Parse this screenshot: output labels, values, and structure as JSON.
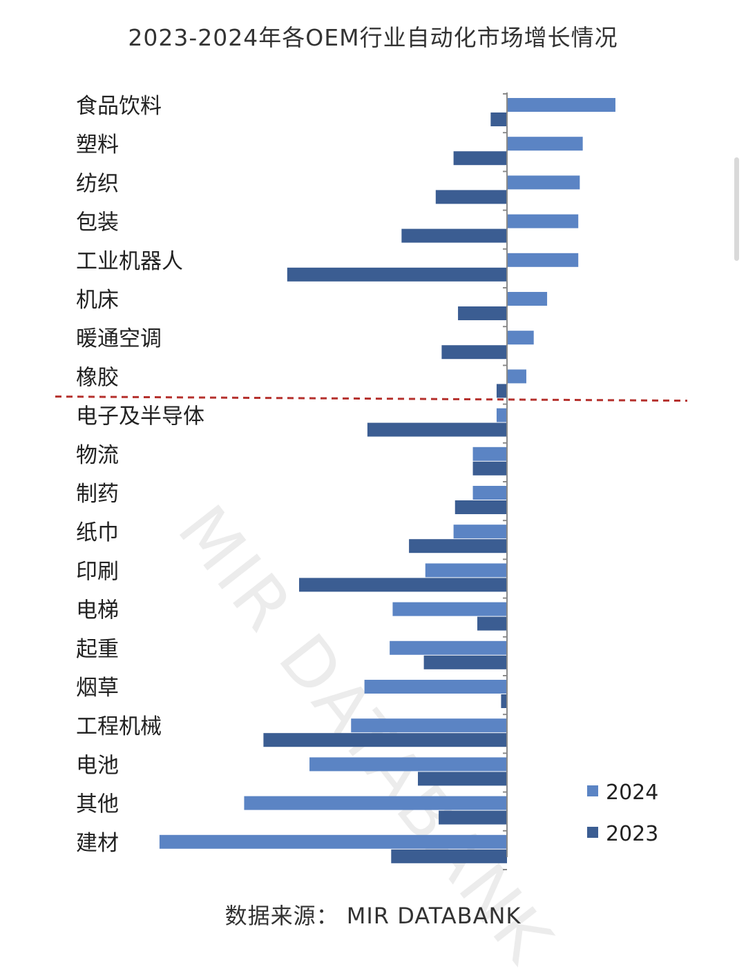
{
  "title": "2023-2024年各OEM行业自动化市场增长情况",
  "source": "数据来源： MIR DATABANK",
  "watermark": "MIR DATABANK",
  "chart_data": {
    "type": "bar",
    "orientation": "horizontal",
    "title": "2023-2024年各OEM行业自动化市场增长情况",
    "categories": [
      "食品饮料",
      "塑料",
      "纺织",
      "包装",
      "工业机器人",
      "机床",
      "暖通空调",
      "橡胶",
      "电子及半导体",
      "物流",
      "制药",
      "纸巾",
      "印刷",
      "电梯",
      "起重",
      "烟草",
      "工程机械",
      "电池",
      "其他",
      "建材"
    ],
    "series": [
      {
        "name": "2024",
        "color": "#5b84c4",
        "values": [
          7.3,
          5.1,
          4.9,
          4.8,
          4.8,
          2.7,
          1.8,
          1.3,
          -0.7,
          -2.3,
          -2.3,
          -3.6,
          -5.5,
          -7.7,
          -7.9,
          -9.6,
          -10.5,
          -13.3,
          -17.7,
          -23.4
        ]
      },
      {
        "name": "2023",
        "color": "#3b5d92",
        "values": [
          -1.1,
          -3.6,
          -4.8,
          -7.1,
          -14.8,
          -3.3,
          -4.4,
          -0.7,
          -9.4,
          -2.3,
          -3.5,
          -6.6,
          -14.0,
          -2.0,
          -5.6,
          -0.4,
          -16.4,
          -6.0,
          -4.6,
          -7.8
        ]
      }
    ],
    "xlim": [
      -24,
      10
    ],
    "divider_after_index": 7,
    "legend": {
      "position": "right",
      "entries": [
        "2024",
        "2023"
      ]
    },
    "grid": false,
    "show_x_axis": false
  }
}
